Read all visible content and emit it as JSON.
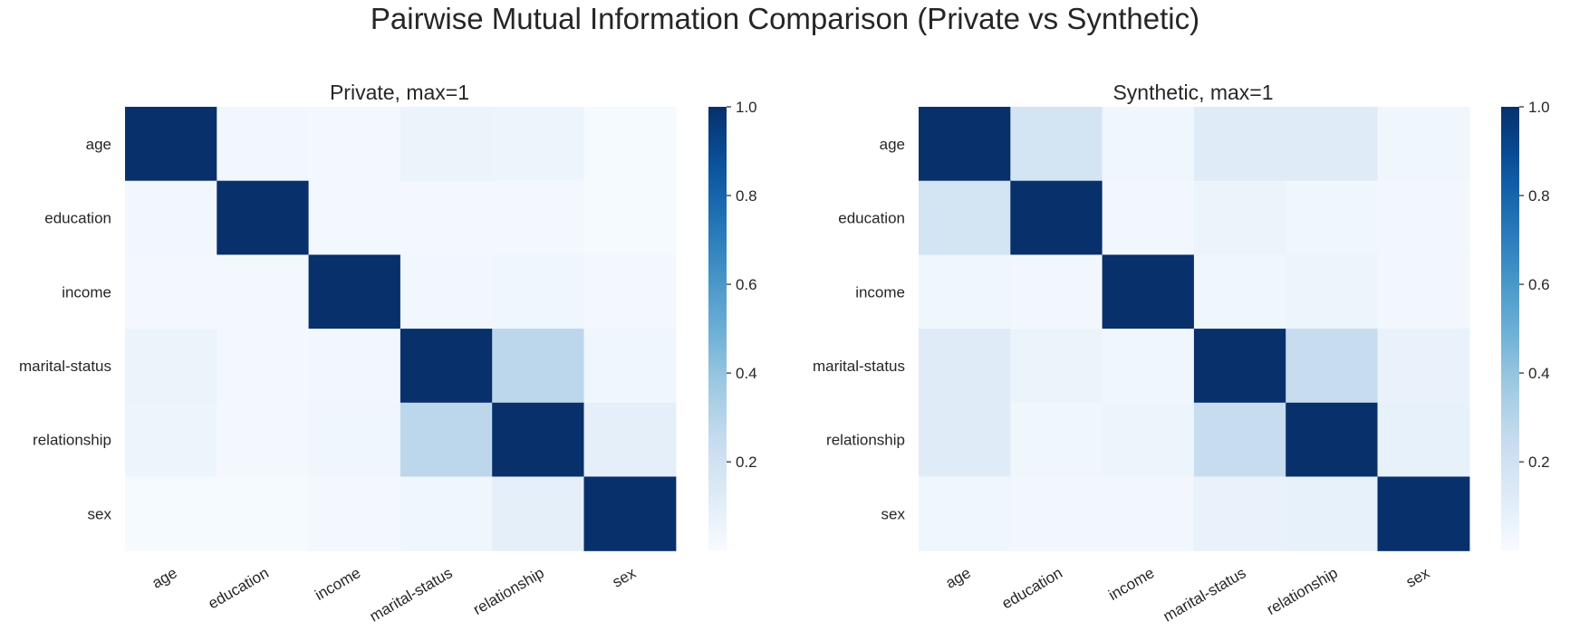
{
  "suptitle": "Pairwise Mutual Information Comparison (Private vs Synthetic)",
  "chart_data": [
    {
      "type": "heatmap",
      "title": "Private, max=1",
      "xlabel": "",
      "ylabel": "",
      "row_labels": [
        "age",
        "education",
        "income",
        "marital-status",
        "relationship",
        "sex"
      ],
      "col_labels": [
        "age",
        "education",
        "income",
        "marital-status",
        "relationship",
        "sex"
      ],
      "values": [
        [
          1.0,
          0.03,
          0.02,
          0.06,
          0.05,
          0.01
        ],
        [
          0.03,
          1.0,
          0.02,
          0.02,
          0.02,
          0.01
        ],
        [
          0.02,
          0.02,
          1.0,
          0.03,
          0.04,
          0.02
        ],
        [
          0.06,
          0.02,
          0.03,
          1.0,
          0.28,
          0.04
        ],
        [
          0.05,
          0.02,
          0.04,
          0.28,
          1.0,
          0.09
        ],
        [
          0.01,
          0.01,
          0.02,
          0.04,
          0.09,
          1.0
        ]
      ],
      "colormap": "Blues",
      "colorbar": {
        "min": 0.0,
        "max": 1.0,
        "ticks": [
          0.2,
          0.4,
          0.6,
          0.8,
          1.0
        ],
        "tick_labels": [
          "0.2",
          "0.4",
          "0.6",
          "0.8",
          "1.0"
        ]
      },
      "grid": false
    },
    {
      "type": "heatmap",
      "title": "Synthetic, max=1",
      "xlabel": "",
      "ylabel": "",
      "row_labels": [
        "age",
        "education",
        "income",
        "marital-status",
        "relationship",
        "sex"
      ],
      "col_labels": [
        "age",
        "education",
        "income",
        "marital-status",
        "relationship",
        "sex"
      ],
      "values": [
        [
          1.0,
          0.18,
          0.04,
          0.12,
          0.12,
          0.04
        ],
        [
          0.18,
          1.0,
          0.03,
          0.06,
          0.04,
          0.03
        ],
        [
          0.04,
          0.03,
          1.0,
          0.04,
          0.05,
          0.03
        ],
        [
          0.12,
          0.06,
          0.04,
          1.0,
          0.24,
          0.07
        ],
        [
          0.12,
          0.04,
          0.05,
          0.24,
          1.0,
          0.08
        ],
        [
          0.04,
          0.03,
          0.03,
          0.07,
          0.08,
          1.0
        ]
      ],
      "colormap": "Blues",
      "colorbar": {
        "min": 0.0,
        "max": 1.0,
        "ticks": [
          0.2,
          0.4,
          0.6,
          0.8,
          1.0
        ],
        "tick_labels": [
          "0.2",
          "0.4",
          "0.6",
          "0.8",
          "1.0"
        ]
      },
      "grid": false
    }
  ]
}
